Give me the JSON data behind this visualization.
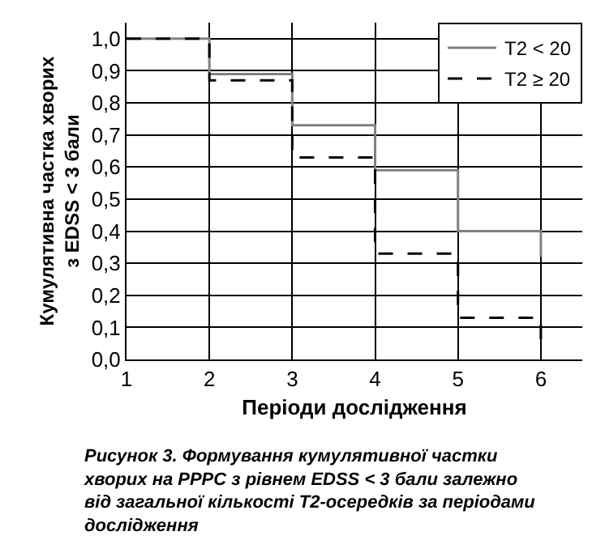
{
  "chart_data": {
    "type": "step",
    "xlabel": "Періоди дослідження",
    "ylabel": "Кумулятивна частка хворих\nз EDSS < 3 бали",
    "x": [
      1,
      2,
      3,
      4,
      5,
      6
    ],
    "series": [
      {
        "name": "T2 < 20",
        "color": "#808080",
        "line_style": "solid",
        "values": [
          1.0,
          0.89,
          0.73,
          0.59,
          0.4,
          0.32
        ]
      },
      {
        "name": "T2 ≥ 20",
        "color": "#000000",
        "line_style": "dashed",
        "values": [
          1.0,
          0.87,
          0.63,
          0.33,
          0.13,
          0.03
        ]
      }
    ],
    "xlim": [
      1,
      6.5
    ],
    "xticks": [
      1,
      2,
      3,
      4,
      5,
      6
    ],
    "ylim": [
      0,
      1.05
    ],
    "yticks": [
      {
        "value": 0,
        "label": "0,0"
      },
      {
        "value": 0.1,
        "label": "0,1"
      },
      {
        "value": 0.2,
        "label": "0,2"
      },
      {
        "value": 0.3,
        "label": "0,3"
      },
      {
        "value": 0.4,
        "label": "0,4"
      },
      {
        "value": 0.5,
        "label": "0,5"
      },
      {
        "value": 0.6,
        "label": "0,6"
      },
      {
        "value": 0.7,
        "label": "0,7"
      },
      {
        "value": 0.8,
        "label": "0,8"
      },
      {
        "value": 0.9,
        "label": "0,9"
      },
      {
        "value": 1.0,
        "label": "1,0"
      }
    ],
    "grid": true,
    "legend": "top right",
    "annotations": [
      "Рисунок 3. Формування кумулятивної частки\nхворих на РРРС з рівнем EDSS < 3 бали залежно\nвід загальної кількості Т2-осередків за періодами\nдослідження"
    ]
  }
}
